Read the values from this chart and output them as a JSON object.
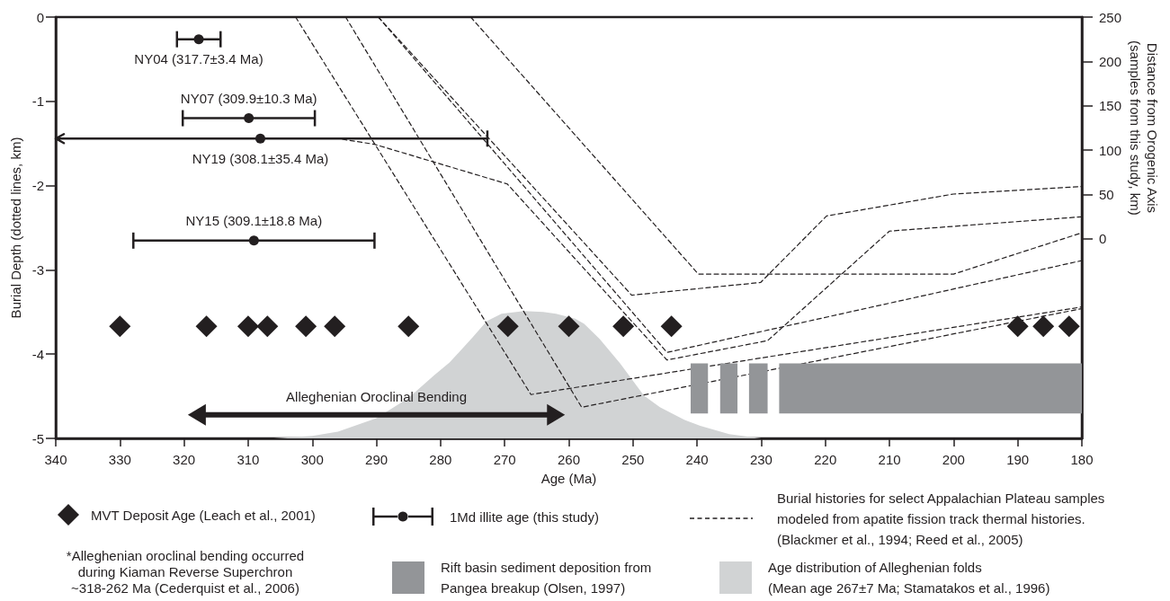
{
  "chart_data": {
    "type": "line",
    "xlabel": "Age (Ma)",
    "ylabel": "Burial Depth (dotted lines, km)",
    "y2label": "Distance from Orogenic Axis (samples from this study, km)",
    "xlim": [
      340,
      180
    ],
    "xticks": [
      340,
      330,
      320,
      310,
      300,
      290,
      280,
      270,
      260,
      250,
      240,
      230,
      220,
      210,
      200,
      190,
      180
    ],
    "ylim": [
      -5,
      0
    ],
    "yticks": [
      -5,
      -4,
      -3,
      -2,
      -1,
      0
    ],
    "y2lim": [
      -225,
      250
    ],
    "y2ticks": [
      0,
      50,
      100,
      150,
      200,
      250
    ],
    "legend": "bottom",
    "series": [
      {
        "name": "MVT Deposit Age (Leach et al., 2001)",
        "type": "scatter",
        "color": "#231f20",
        "marker": "diamond",
        "x": [
          330,
          316.5,
          310,
          307,
          301,
          296.5,
          285,
          269.5,
          260,
          251.5,
          244,
          190,
          186,
          182
        ],
        "values": [
          -3.67,
          -3.67,
          -3.67,
          -3.67,
          -3.67,
          -3.67,
          -3.67,
          -3.67,
          -3.67,
          -3.67,
          -3.67,
          -3.67,
          -3.67,
          -3.67
        ]
      },
      {
        "name": "1Md illite age (this study)",
        "type": "scatter",
        "axis": "y2",
        "color": "#231f20",
        "marker": "circle",
        "x": [
          317.7,
          309.9,
          308.1,
          309.1
        ],
        "values": [
          225,
          136,
          113,
          -2
        ],
        "xerrors": [
          3.4,
          10.3,
          [
            272.7,
            340
          ],
          18.8
        ],
        "value_labels": [
          "NY04 (317.7±3.4 Ma)",
          "NY07 (309.9±10.3 Ma)",
          "NY19 (308.1±35.4 Ma)",
          "NY15 (309.1±18.8 Ma)"
        ]
      },
      {
        "name": "Burial histories for select Appalachian Plateau samples modeled from apatite fission track thermal histories. (Blackmer et al., 1994; Reed et al., 2005)",
        "color": "#231f20",
        "line_style": "dashed",
        "marker": "none",
        "x": [
          302.6,
          265.9,
          180
        ],
        "values": [
          0,
          -4.48,
          -3.44
        ]
      },
      {
        "color": "#231f20",
        "line_style": "dashed",
        "marker": "none",
        "x": [
          294.8,
          258,
          180
        ],
        "values": [
          0,
          -4.63,
          -3.46
        ]
      },
      {
        "color": "#231f20",
        "line_style": "dashed",
        "marker": "none",
        "x": [
          289.7,
          250.2,
          230.1,
          219.8,
          200,
          180
        ],
        "values": [
          0,
          -3.3,
          -3.15,
          -2.36,
          -2.1,
          -2.01
        ]
      },
      {
        "color": "#231f20",
        "line_style": "dashed",
        "marker": "none",
        "x": [
          289.7,
          244.7,
          180
        ],
        "values": [
          0,
          -3.98,
          -2.89
        ]
      },
      {
        "color": "#231f20",
        "line_style": "dashed",
        "marker": "none",
        "x": [
          295.3,
          290.3,
          269.6,
          244.7,
          229,
          210,
          180
        ],
        "values": [
          -1.45,
          -1.51,
          -1.98,
          -4.07,
          -3.84,
          -2.54,
          -2.37
        ]
      },
      {
        "color": "#231f20",
        "line_style": "dashed",
        "marker": "none",
        "x": [
          275.3,
          239.8,
          200,
          180
        ],
        "values": [
          0,
          -3.05,
          -3.05,
          -2.56
        ]
      },
      {
        "name": "Age distribution of Alleghenian folds (Mean age 267±7 Ma; Stamatakos et al., 1996)",
        "type": "area",
        "color": "#d1d3d4",
        "x": [
          306,
          300,
          296,
          290,
          285,
          281,
          278.6,
          275,
          272.8,
          270.5,
          267,
          264,
          262,
          259,
          257.6,
          255.2,
          252,
          248.3,
          245.8,
          242,
          239.5,
          235,
          230
        ],
        "values": [
          -5,
          -4.97,
          -4.92,
          -4.76,
          -4.52,
          -4.25,
          -4.1,
          -3.8,
          -3.61,
          -3.52,
          -3.49,
          -3.5,
          -3.52,
          -3.58,
          -3.64,
          -3.82,
          -4.11,
          -4.49,
          -4.63,
          -4.78,
          -4.85,
          -4.95,
          -5
        ]
      },
      {
        "color": "#231f20",
        "marker": "triangle",
        "line_style": "solid",
        "x": [
          318,
          262
        ],
        "values": [
          -4.72,
          -4.72
        ]
      }
    ],
    "bands": [
      {
        "axis": "x",
        "from": 241,
        "to": 238.3,
        "color": "#939598",
        "label": "Rift basin sediment deposition from Pangea breakup (Olsen, 1997)"
      },
      {
        "axis": "x",
        "from": 236.4,
        "to": 233.7,
        "color": "#939598"
      },
      {
        "axis": "x",
        "from": 231.9,
        "to": 229,
        "color": "#939598"
      },
      {
        "axis": "x",
        "from": 227.2,
        "to": 180,
        "color": "#939598"
      }
    ],
    "annotations": [
      {
        "text": "Alleghenian Oroclinal Bending",
        "x": 290,
        "y": -4.72
      },
      "*Alleghenian oroclinal bending occurred during Kiaman Reverse Superchron ~318-262 Ma (Cederquist et al., 2006)"
    ]
  }
}
